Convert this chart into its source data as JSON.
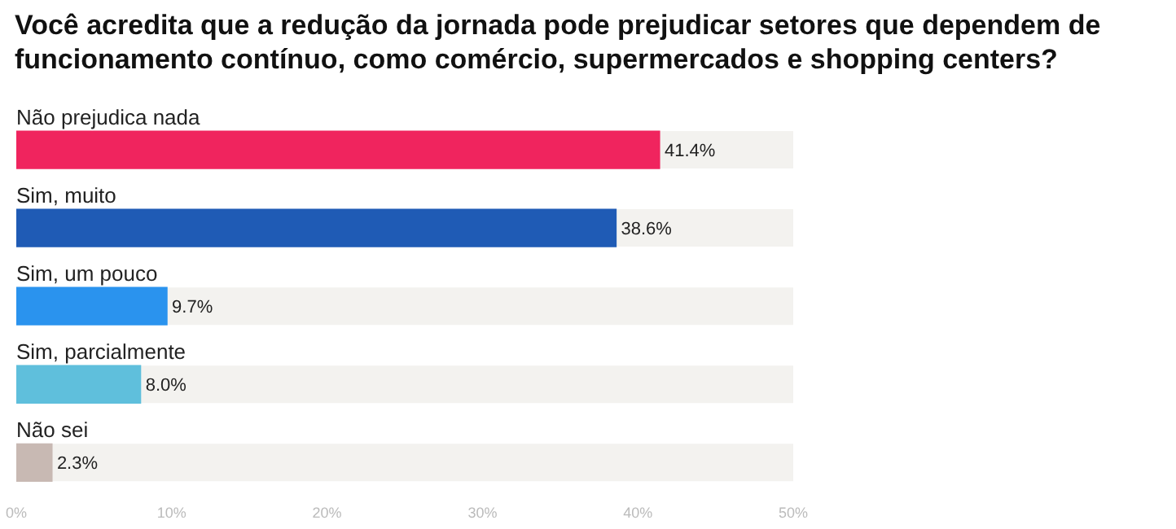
{
  "chart_data": {
    "type": "bar",
    "orientation": "horizontal",
    "title": "Você acredita que a redução da jornada pode prejudicar setores que dependem de funcionamento contínuo, como comércio, supermercados e shopping centers?",
    "categories": [
      "Não prejudica nada",
      "Sim, muito",
      "Sim, um pouco",
      "Sim, parcialmente",
      "Não sei"
    ],
    "values": [
      41.4,
      38.6,
      9.7,
      8.0,
      2.3
    ],
    "colors": [
      "#f0245e",
      "#1f5bb5",
      "#2a93ee",
      "#5fbfdc",
      "#c8b9b3"
    ],
    "value_labels": [
      "41.4%",
      "38.6%",
      "9.7%",
      "8.0%",
      "2.3%"
    ],
    "xlim": [
      0,
      50
    ],
    "xticks": [
      {
        "value": 0,
        "label": "0%"
      },
      {
        "value": 10,
        "label": "10%"
      },
      {
        "value": 20,
        "label": "20%"
      },
      {
        "value": 30,
        "label": "30%"
      },
      {
        "value": 40,
        "label": "40%"
      },
      {
        "value": 50,
        "label": "50%"
      }
    ],
    "grid": false,
    "legend": false
  }
}
